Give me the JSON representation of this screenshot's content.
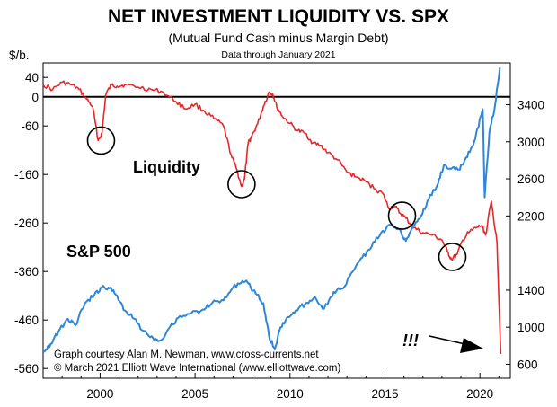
{
  "chart_data": {
    "type": "line",
    "title": "NET INVESTMENT LIQUIDITY VS. SPX",
    "subtitle": "(Mutual Fund Cash minus Margin Debt)",
    "note": "Data through January 2021",
    "y_left_unit": "$/b.",
    "x_ticks": [
      "2000",
      "2005",
      "2010",
      "2015",
      "2020"
    ],
    "y_left_ticks": [
      "40",
      "0",
      "-60",
      "-160",
      "-260",
      "-360",
      "-460",
      "-560"
    ],
    "y_right_ticks": [
      "3400",
      "3000",
      "2600",
      "2200",
      "1400",
      "1000",
      "600"
    ],
    "xlim": [
      1997.0,
      2021.6
    ],
    "ylim_left": [
      -580,
      70
    ],
    "ylim_right": [
      450,
      3850
    ],
    "series": [
      {
        "name": "Liquidity",
        "color": "#e8262a",
        "axis": "left",
        "x": [
          1997.0,
          1997.5,
          1998.0,
          1998.5,
          1998.9,
          1999.3,
          1999.6,
          1999.9,
          2000.1,
          2000.3,
          2000.6,
          2000.9,
          2001.3,
          2002.0,
          2002.7,
          2003.3,
          2004.0,
          2004.5,
          2005.0,
          2005.5,
          2006.0,
          2006.5,
          2006.9,
          2007.2,
          2007.45,
          2007.6,
          2007.8,
          2008.0,
          2008.3,
          2008.6,
          2008.9,
          2009.1,
          2009.3,
          2009.6,
          2010.0,
          2010.4,
          2010.8,
          2011.2,
          2011.6,
          2012.0,
          2012.5,
          2013.0,
          2013.5,
          2014.0,
          2014.5,
          2014.9,
          2015.2,
          2015.5,
          2015.8,
          2016.1,
          2016.5,
          2017.0,
          2017.5,
          2018.0,
          2018.3,
          2018.5,
          2018.8,
          2019.1,
          2019.4,
          2019.8,
          2020.1,
          2020.3,
          2020.6,
          2020.9,
          2021.1
        ],
        "values": [
          25,
          15,
          30,
          25,
          15,
          -5,
          -20,
          -90,
          -75,
          5,
          25,
          22,
          25,
          20,
          15,
          10,
          -10,
          -25,
          -15,
          -30,
          -45,
          -60,
          -120,
          -150,
          -185,
          -170,
          -95,
          -80,
          -55,
          -20,
          10,
          5,
          -20,
          -40,
          -55,
          -70,
          -75,
          -95,
          -100,
          -115,
          -130,
          -155,
          -165,
          -175,
          -190,
          -200,
          -230,
          -225,
          -240,
          -250,
          -270,
          -280,
          -285,
          -295,
          -320,
          -335,
          -325,
          -295,
          -280,
          -270,
          -265,
          -285,
          -215,
          -300,
          -530
        ]
      },
      {
        "name": "S&P 500",
        "color": "#2e86d8",
        "axis": "right",
        "x": [
          1997.0,
          1997.4,
          1997.8,
          1998.3,
          1998.7,
          1999.2,
          1999.7,
          2000.1,
          2000.5,
          2000.9,
          2001.3,
          2001.8,
          2002.3,
          2002.8,
          2003.2,
          2003.7,
          2004.2,
          2004.8,
          2005.4,
          2005.9,
          2006.5,
          2007.0,
          2007.5,
          2007.8,
          2008.2,
          2008.6,
          2008.9,
          2009.2,
          2009.5,
          2009.9,
          2010.3,
          2010.8,
          2011.3,
          2011.8,
          2012.3,
          2012.8,
          2013.3,
          2013.8,
          2014.3,
          2014.8,
          2015.3,
          2015.8,
          2016.1,
          2016.5,
          2016.9,
          2017.3,
          2017.8,
          2018.1,
          2018.5,
          2018.9,
          2019.2,
          2019.6,
          2019.9,
          2020.15,
          2020.25,
          2020.5,
          2020.8,
          2021.05
        ],
        "values": [
          740,
          820,
          950,
          1090,
          1020,
          1260,
          1350,
          1430,
          1420,
          1340,
          1180,
          1090,
          960,
          880,
          860,
          1010,
          1120,
          1150,
          1190,
          1260,
          1290,
          1430,
          1500,
          1470,
          1360,
          1260,
          900,
          760,
          1000,
          1110,
          1180,
          1250,
          1330,
          1200,
          1380,
          1420,
          1600,
          1750,
          1870,
          2020,
          2100,
          2050,
          1930,
          2100,
          2200,
          2380,
          2550,
          2750,
          2710,
          2700,
          2800,
          2950,
          3150,
          3350,
          2400,
          3100,
          3400,
          3800
        ]
      }
    ],
    "annotations": {
      "liquidity": "Liquidity",
      "sp500": "S&P 500",
      "exclaim": "!!!",
      "credit1": "Graph courtesy Alan M. Newman, www.cross-currents.net",
      "credit2": "© March 2021 Elliott Wave International (www.elliottwave.com)"
    },
    "circles": [
      {
        "x": 2000.05,
        "y": -90
      },
      {
        "x": 2007.45,
        "y": -180
      },
      {
        "x": 2015.9,
        "y": -245
      },
      {
        "x": 2018.55,
        "y": -330
      }
    ],
    "zero_line": 0
  }
}
